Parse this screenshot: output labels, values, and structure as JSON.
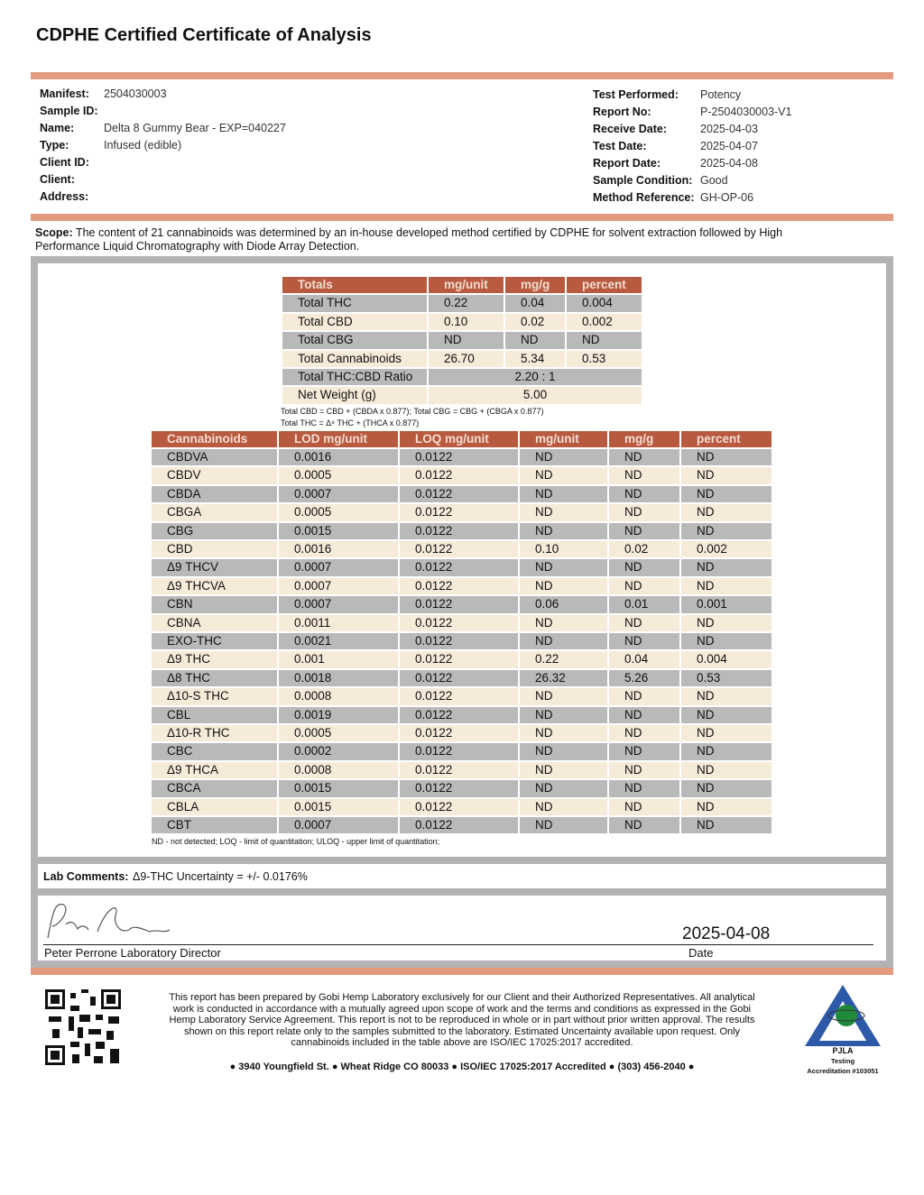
{
  "title": "CDPHE Certified Certificate of Analysis",
  "sample_info": {
    "left": [
      {
        "label": "Manifest:",
        "value": "2504030003"
      },
      {
        "label": "Sample ID:"
      },
      {
        "label": "Name:",
        "value": "Delta 8 Gummy Bear - EXP=040227"
      },
      {
        "label": "Type:",
        "value": "Infused (edible)"
      },
      {
        "label": "Client ID:"
      },
      {
        "label": "Client:"
      },
      {
        "label": "Address:"
      }
    ],
    "right": [
      {
        "label": "Test Performed:",
        "value": "Potency"
      },
      {
        "label": "Report No:",
        "value": "P-2504030003-V1"
      },
      {
        "label": "Receive Date:",
        "value": "2025-04-03"
      },
      {
        "label": "Test Date:",
        "value": "2025-04-07"
      },
      {
        "label": "Report Date:",
        "value": "2025-04-08"
      },
      {
        "label": "Sample Condition:",
        "value": "Good"
      },
      {
        "label": "Method Reference:",
        "value": "GH-OP-06"
      }
    ]
  },
  "scope": {
    "label": "Scope:",
    "text": "The content of 21 cannabinoids was determined by an in-house developed method certified by CDPHE for solvent extraction followed by High Performance Liquid Chromatography with Diode Array Detection."
  },
  "totals": {
    "header": [
      "Totals",
      "mg/unit",
      "mg/g",
      "percent"
    ],
    "rows": [
      [
        "Total THC",
        "0.22",
        "0.04",
        "0.004"
      ],
      [
        "Total CBD",
        "0.10",
        "0.02",
        "0.002"
      ],
      [
        "Total CBG",
        "ND",
        "ND",
        "ND"
      ],
      [
        "Total Cannabinoids",
        "26.70",
        "5.34",
        "0.53"
      ],
      [
        "Total THC:CBD Ratio",
        "2.20 : 1"
      ],
      [
        "Net Weight (g)",
        "5.00"
      ]
    ],
    "notes": [
      "Total CBD = CBD + (CBDA x 0.877); Total CBG = CBG + (CBGA x 0.877)",
      "Total THC = Δ⁹ THC + (THCA x 0.877)"
    ]
  },
  "cannabinoids": {
    "header": [
      "Cannabinoids",
      "LOD mg/unit",
      "LOQ mg/unit",
      "mg/unit",
      "mg/g",
      "percent"
    ],
    "rows": [
      [
        "CBDVA",
        "0.0016",
        "0.0122",
        "ND",
        "ND",
        "ND"
      ],
      [
        "CBDV",
        "0.0005",
        "0.0122",
        "ND",
        "ND",
        "ND"
      ],
      [
        "CBDA",
        "0.0007",
        "0.0122",
        "ND",
        "ND",
        "ND"
      ],
      [
        "CBGA",
        "0.0005",
        "0.0122",
        "ND",
        "ND",
        "ND"
      ],
      [
        "CBG",
        "0.0015",
        "0.0122",
        "ND",
        "ND",
        "ND"
      ],
      [
        "CBD",
        "0.0016",
        "0.0122",
        "0.10",
        "0.02",
        "0.002"
      ],
      [
        "Δ9 THCV",
        "0.0007",
        "0.0122",
        "ND",
        "ND",
        "ND"
      ],
      [
        "Δ9 THCVA",
        "0.0007",
        "0.0122",
        "ND",
        "ND",
        "ND"
      ],
      [
        "CBN",
        "0.0007",
        "0.0122",
        "0.06",
        "0.01",
        "0.001"
      ],
      [
        "CBNA",
        "0.0011",
        "0.0122",
        "ND",
        "ND",
        "ND"
      ],
      [
        "EXO-THC",
        "0.0021",
        "0.0122",
        "ND",
        "ND",
        "ND"
      ],
      [
        "Δ9 THC",
        "0.001",
        "0.0122",
        "0.22",
        "0.04",
        "0.004"
      ],
      [
        "Δ8 THC",
        "0.0018",
        "0.0122",
        "26.32",
        "5.26",
        "0.53"
      ],
      [
        "Δ10-S THC",
        "0.0008",
        "0.0122",
        "ND",
        "ND",
        "ND"
      ],
      [
        "CBL",
        "0.0019",
        "0.0122",
        "ND",
        "ND",
        "ND"
      ],
      [
        "Δ10-R THC",
        "0.0005",
        "0.0122",
        "ND",
        "ND",
        "ND"
      ],
      [
        "CBC",
        "0.0002",
        "0.0122",
        "ND",
        "ND",
        "ND"
      ],
      [
        "Δ9 THCA",
        "0.0008",
        "0.0122",
        "ND",
        "ND",
        "ND"
      ],
      [
        "CBCA",
        "0.0015",
        "0.0122",
        "ND",
        "ND",
        "ND"
      ],
      [
        "CBLA",
        "0.0015",
        "0.0122",
        "ND",
        "ND",
        "ND"
      ],
      [
        "CBT",
        "0.0007",
        "0.0122",
        "ND",
        "ND",
        "ND"
      ]
    ],
    "footnote": "ND - not detected; LOQ - limit of quantitation; ULOQ - upper limit of quantitation;"
  },
  "lab_comments": {
    "label": "Lab Comments:",
    "text": "Δ9-THC Uncertainty = +/- 0.0176%"
  },
  "signature": {
    "name": "Peter Perrone Laboratory Director",
    "date": "2025-04-08",
    "date_label": "Date"
  },
  "footer": {
    "disclaimer": "This report has been prepared by Gobi Hemp Laboratory exclusively for our Client and their Authorized Representatives. All analytical work is conducted in accordance with a mutually agreed upon scope of work and the terms and conditions as expressed in the Gobi Hemp Laboratory Service Agreement. This report is not to be reproduced in whole or in part without prior written approval. The results shown on this report relate only to the samples submitted to the laboratory. Estimated Uncertainty available upon request. Only cannabinoids included in the table above are ISO/IEC 17025:2017 accredited.",
    "address": "● 3940 Youngfield St. ● Wheat Ridge CO 80033 ● ISO/IEC 17025:2017 Accredited ● (303) 456-2040 ●"
  },
  "accreditation": {
    "name": "PJLA",
    "line1": "Testing",
    "line2": "Accreditation #103051"
  }
}
